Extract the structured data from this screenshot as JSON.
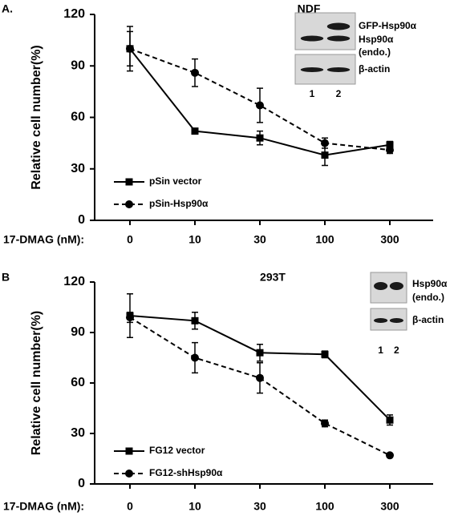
{
  "chart_data": [
    {
      "type": "line",
      "panel": "A.",
      "title": "NDF",
      "ylabel": "Relative cell number(%)",
      "xlabel": "17-DMAG (nM):",
      "categories": [
        "0",
        "10",
        "30",
        "100",
        "300"
      ],
      "ylim": [
        0,
        120
      ],
      "yticks": [
        0,
        30,
        60,
        90,
        120
      ],
      "grid": false,
      "legend": "lower left",
      "series": [
        {
          "name": "pSin vector",
          "color": "#000000",
          "linestyle": "solid",
          "marker": "square",
          "values": [
            100,
            52,
            48,
            38,
            44
          ],
          "errors": [
            13,
            1,
            4,
            6,
            2
          ]
        },
        {
          "name": "pSin-Hsp90α",
          "color": "#000000",
          "linestyle": "dashed",
          "marker": "circle",
          "values": [
            100,
            86,
            67,
            45,
            41
          ],
          "errors": [
            10,
            8,
            10,
            3,
            2
          ]
        }
      ],
      "inset": {
        "labels": [
          "GFP-Hsp90α",
          "Hsp90α",
          "(endo.)",
          "β-actin"
        ],
        "lanes": [
          "1",
          "2"
        ]
      }
    },
    {
      "type": "line",
      "panel": "B",
      "title": "293T",
      "ylabel": "Relative cell number(%)",
      "xlabel": "17-DMAG (nM):",
      "categories": [
        "0",
        "10",
        "30",
        "100",
        "300"
      ],
      "ylim": [
        0,
        120
      ],
      "yticks": [
        0,
        30,
        60,
        90,
        120
      ],
      "grid": false,
      "legend": "lower left",
      "series": [
        {
          "name": "FG12 vector",
          "color": "#000000",
          "linestyle": "solid",
          "marker": "square",
          "values": [
            100,
            97,
            78,
            77,
            38
          ],
          "errors": [
            13,
            5,
            5,
            2,
            3
          ]
        },
        {
          "name": "FG12-shHsp90α",
          "color": "#000000",
          "linestyle": "dashed",
          "marker": "circle",
          "values": [
            99,
            75,
            63,
            36,
            17
          ],
          "errors": [
            3,
            9,
            9,
            2,
            1
          ]
        }
      ],
      "inset": {
        "labels": [
          "Hsp90α",
          "(endo.)",
          "β-actin"
        ],
        "lanes": [
          "1",
          "2"
        ]
      }
    }
  ]
}
